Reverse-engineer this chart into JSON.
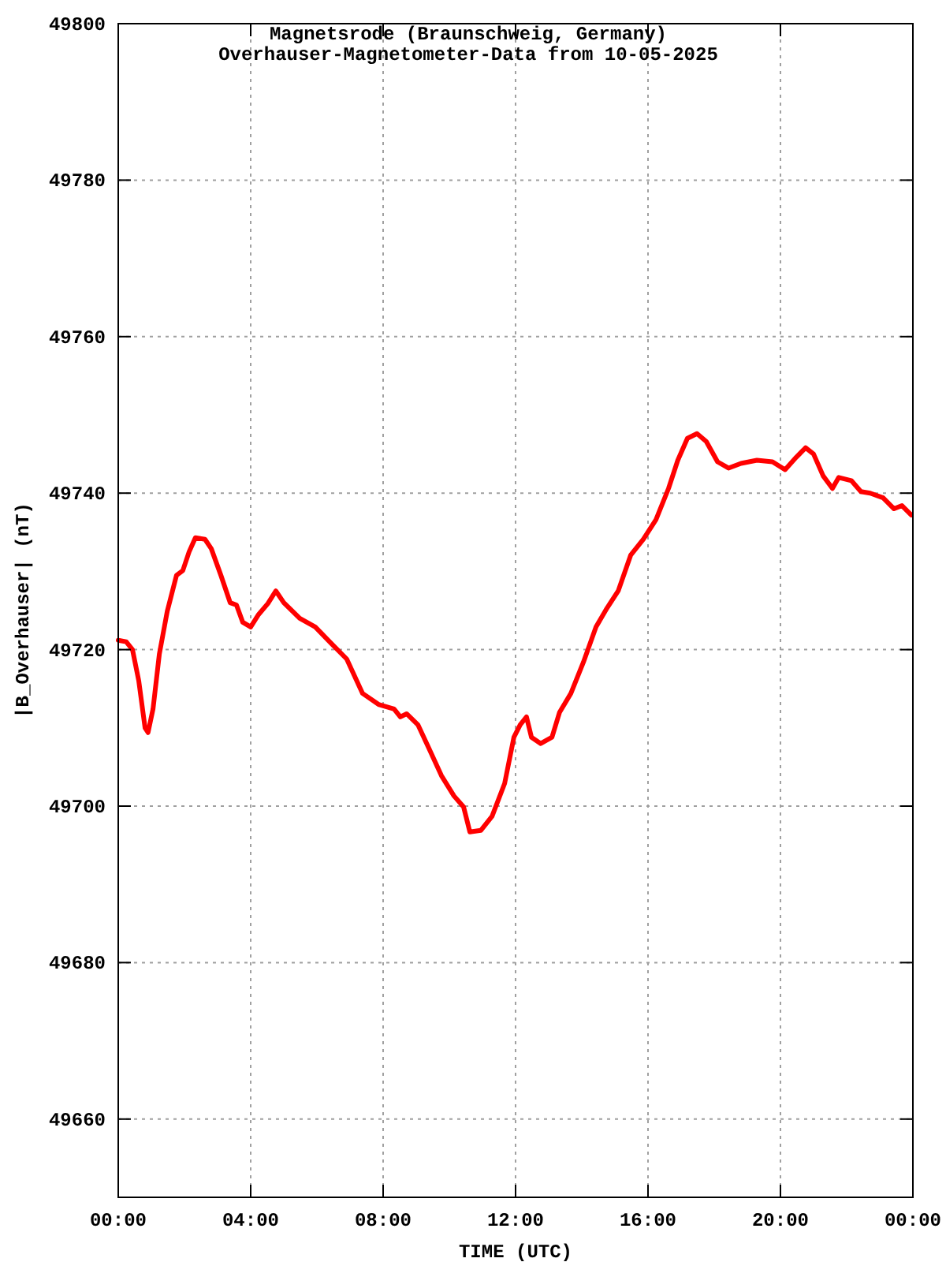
{
  "chart_data": {
    "type": "line",
    "title": "Magnetsrode (Braunschweig, Germany)",
    "subtitle": "Overhauser-Magnetometer-Data from 10-05-2025",
    "xlabel": "TIME (UTC)",
    "ylabel": "|B_Overhauser| (nT)",
    "xlim": [
      0,
      24
    ],
    "ylim": [
      49650,
      49800
    ],
    "xticks": [
      {
        "value": 0,
        "label": "00:00"
      },
      {
        "value": 4,
        "label": "04:00"
      },
      {
        "value": 8,
        "label": "08:00"
      },
      {
        "value": 12,
        "label": "12:00"
      },
      {
        "value": 16,
        "label": "16:00"
      },
      {
        "value": 20,
        "label": "20:00"
      },
      {
        "value": 24,
        "label": "00:00"
      }
    ],
    "yticks": [
      49660,
      49680,
      49700,
      49720,
      49740,
      49760,
      49780,
      49800
    ],
    "grid": true,
    "marker": "none",
    "line_style": "solid",
    "x": [
      0,
      0.24,
      0.43,
      0.62,
      0.81,
      0.9,
      1.05,
      1.24,
      1.48,
      1.76,
      1.95,
      2.14,
      2.33,
      2.62,
      2.81,
      3.1,
      3.38,
      3.57,
      3.76,
      4.0,
      4.24,
      4.52,
      4.76,
      5.0,
      5.48,
      5.95,
      6.43,
      6.9,
      7.38,
      7.86,
      8.33,
      8.52,
      8.71,
      9.05,
      9.38,
      9.76,
      10.14,
      10.43,
      10.62,
      10.95,
      11.29,
      11.67,
      11.95,
      12.14,
      12.33,
      12.48,
      12.76,
      13.1,
      13.33,
      13.67,
      14.05,
      14.43,
      14.76,
      15.1,
      15.48,
      15.86,
      16.24,
      16.62,
      16.9,
      17.19,
      17.48,
      17.76,
      18.1,
      18.43,
      18.81,
      19.29,
      19.76,
      20.14,
      20.48,
      20.76,
      21.0,
      21.29,
      21.57,
      21.76,
      22.14,
      22.43,
      22.71,
      23.1,
      23.43,
      23.67,
      23.95
    ],
    "series": [
      {
        "color": "#ff0000",
        "values": [
          49721.2,
          49721,
          49720,
          49716,
          49710,
          49709.4,
          49712.4,
          49719.4,
          49724.9,
          49729.5,
          49730.1,
          49732.5,
          49734.3,
          49734.1,
          49732.9,
          49729.5,
          49726,
          49725.7,
          49723.5,
          49722.9,
          49724.5,
          49725.9,
          49727.5,
          49726,
          49724,
          49722.9,
          49720.8,
          49718.8,
          49714.4,
          49713,
          49712.4,
          49711.4,
          49711.8,
          49710.4,
          49707.4,
          49703.9,
          49701.3,
          49699.9,
          49696.7,
          49696.9,
          49698.7,
          49702.9,
          49708.8,
          49710.4,
          49711.4,
          49708.8,
          49708,
          49708.8,
          49712,
          49714.4,
          49718.4,
          49722.9,
          49725.3,
          49727.5,
          49732.1,
          49734.1,
          49736.6,
          49740.6,
          49744.2,
          49747,
          49747.6,
          49746.6,
          49744,
          49743.2,
          49743.8,
          49744.2,
          49744,
          49743,
          49744.6,
          49745.8,
          49745,
          49742.2,
          49740.6,
          49742,
          49741.6,
          49740.2,
          49740,
          49739.4,
          49738,
          49738.4,
          49737.2
        ]
      }
    ]
  }
}
